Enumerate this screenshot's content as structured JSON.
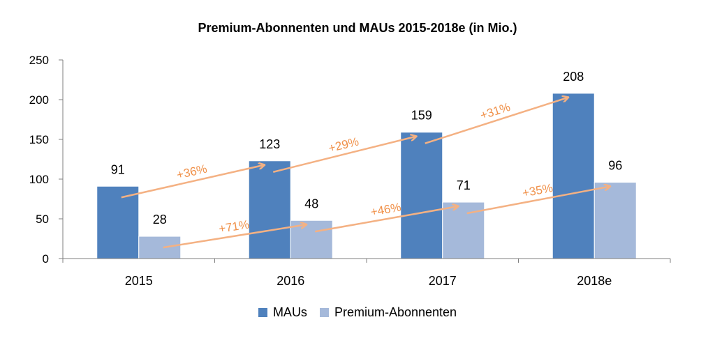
{
  "chart_data": {
    "type": "bar",
    "title": "Premium-Abonnenten und MAUs 2015-2018e (in Mio.)",
    "categories": [
      "2015",
      "2016",
      "2017",
      "2018e"
    ],
    "series": [
      {
        "name": "MAUs",
        "values": [
          91,
          123,
          159,
          208
        ],
        "color": "#4f81bd"
      },
      {
        "name": "Premium-Abonnenten",
        "values": [
          28,
          48,
          71,
          96
        ],
        "color": "#a5b9da"
      }
    ],
    "ylim": [
      0,
      250
    ],
    "yticks": [
      0,
      50,
      100,
      150,
      200,
      250
    ],
    "ytick_labels": [
      "0",
      "50",
      "100",
      "150",
      "200",
      "250"
    ],
    "legend_position": "bottom",
    "growth_annotations": [
      {
        "series": "MAUs",
        "from": "2015",
        "to": "2016",
        "label": "+36%"
      },
      {
        "series": "MAUs",
        "from": "2016",
        "to": "2017",
        "label": "+29%"
      },
      {
        "series": "MAUs",
        "from": "2017",
        "to": "2018e",
        "label": "+31%"
      },
      {
        "series": "Premium-Abonnenten",
        "from": "2015",
        "to": "2016",
        "label": "+71%"
      },
      {
        "series": "Premium-Abonnenten",
        "from": "2016",
        "to": "2017",
        "label": "+46%"
      },
      {
        "series": "Premium-Abonnenten",
        "from": "2017",
        "to": "2018e",
        "label": "+35%"
      }
    ],
    "annotation_color": "#f4b183",
    "annotation_text_color": "#f0914a"
  }
}
